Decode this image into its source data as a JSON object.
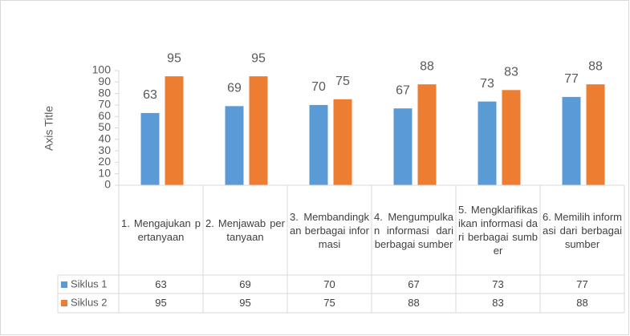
{
  "chart_data": {
    "type": "bar",
    "y_axis_label": "Axis Title",
    "categories": [
      "1. Mengajukan pertanyaan",
      "2. Menjawab pertanyaan",
      "3. Membandingkan berbagai informasi",
      "4. Mengumpulkan informasi dari berbagai sumber",
      "5. Mengklarifikasikan informasi dari berbagai sumber",
      "6. Memilih informasi dari berbagai sumber"
    ],
    "series": [
      {
        "name": "Siklus 1",
        "color": "#5b9bd5",
        "values": [
          63,
          69,
          70,
          67,
          73,
          77
        ]
      },
      {
        "name": "Siklus 2",
        "color": "#ed7d31",
        "values": [
          95,
          95,
          75,
          88,
          83,
          88
        ]
      }
    ],
    "ylim": [
      0,
      100
    ],
    "yticks": [
      0,
      10,
      20,
      30,
      40,
      50,
      60,
      70,
      80,
      90,
      100
    ],
    "grid": false,
    "data_table": true
  }
}
